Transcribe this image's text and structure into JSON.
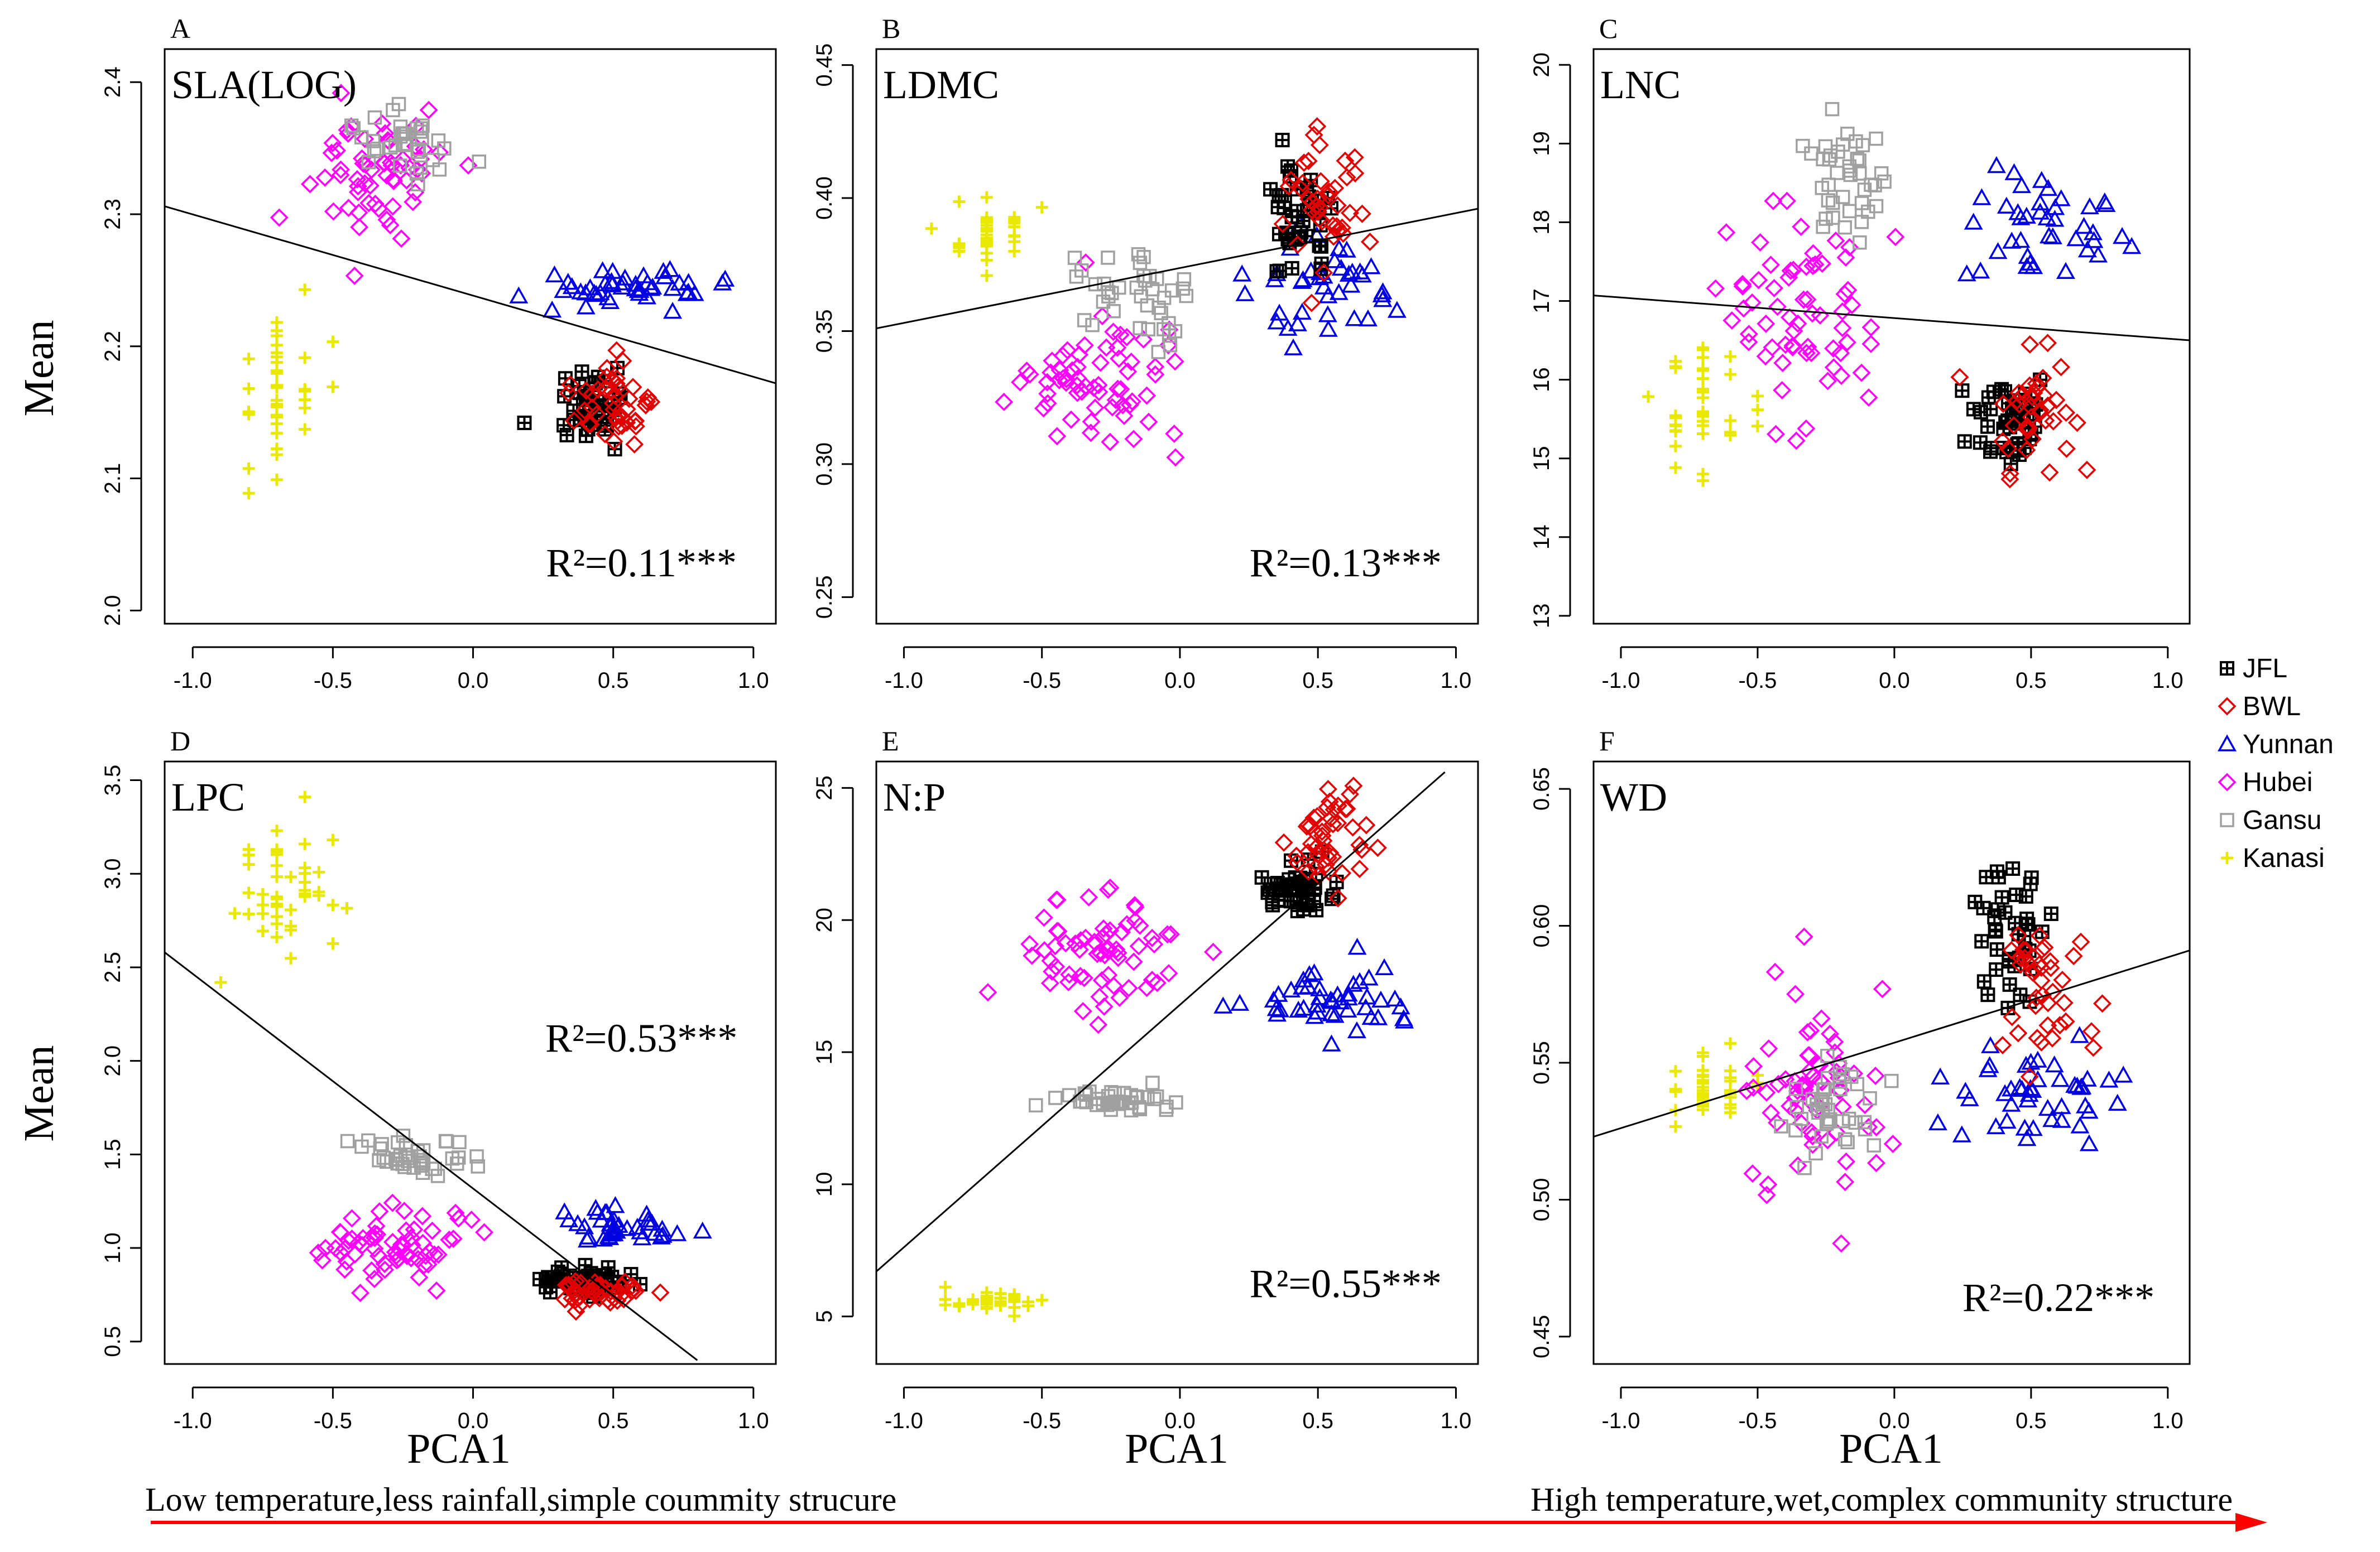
{
  "legend": {
    "items": [
      {
        "name": "JFL",
        "color": "#000000",
        "marker": "boxplus"
      },
      {
        "name": "BWL",
        "color": "#e00000",
        "marker": "diamond"
      },
      {
        "name": "Yunnan",
        "color": "#0000e0",
        "marker": "triangle"
      },
      {
        "name": "Hubei",
        "color": "#ff00ff",
        "marker": "diamond"
      },
      {
        "name": "Gansu",
        "color": "#a0a0a0",
        "marker": "square"
      },
      {
        "name": "Kanasi",
        "color": "#e8e800",
        "marker": "plus"
      }
    ]
  },
  "axes_titles": {
    "ylabel": "Mean",
    "xlabel": "PCA1"
  },
  "footer": {
    "left_text": "Low temperature,less rainfall,simple coummity strucure",
    "right_text": "High temperature,wet,complex community structure",
    "arrow_color": "#ff0000"
  },
  "chart_data": [
    {
      "panel": "A",
      "title": "SLA(LOG)",
      "type": "scatter",
      "r2": "R²=0.11***",
      "xlim": [
        -1.1,
        1.08
      ],
      "ylim": [
        1.99,
        2.425
      ],
      "xticks": [
        "-1.0",
        "-0.5",
        "0.0",
        "0.5",
        "1.0"
      ],
      "yticks": [
        "2.0",
        "2.1",
        "2.2",
        "2.3",
        "2.4"
      ],
      "fit": {
        "x": [
          -1.1,
          1.08
        ],
        "y": [
          2.306,
          2.172
        ]
      },
      "series": [
        {
          "name": "Kanasi",
          "cx": -0.68,
          "cy": 2.17,
          "sx": 0.1,
          "sy": 0.04,
          "n": 40
        },
        {
          "name": "Hubei",
          "cx": -0.33,
          "cy": 2.33,
          "sx": 0.15,
          "sy": 0.035,
          "n": 60
        },
        {
          "name": "Gansu",
          "cx": -0.22,
          "cy": 2.355,
          "sx": 0.1,
          "sy": 0.02,
          "n": 35
        },
        {
          "name": "Yunnan",
          "cx": 0.52,
          "cy": 2.245,
          "sx": 0.22,
          "sy": 0.015,
          "n": 45
        },
        {
          "name": "JFL",
          "cx": 0.42,
          "cy": 2.15,
          "sx": 0.1,
          "sy": 0.02,
          "n": 45
        },
        {
          "name": "BWL",
          "cx": 0.5,
          "cy": 2.155,
          "sx": 0.09,
          "sy": 0.02,
          "n": 45
        }
      ]
    },
    {
      "panel": "B",
      "title": "LDMC",
      "type": "scatter",
      "r2": "R²=0.13***",
      "xlim": [
        -1.1,
        1.08
      ],
      "ylim": [
        0.24,
        0.456
      ],
      "xticks": [
        "-1.0",
        "-0.5",
        "0.0",
        "0.5",
        "1.0"
      ],
      "yticks": [
        "0.25",
        "0.30",
        "0.35",
        "0.40",
        "0.45"
      ],
      "fit": {
        "x": [
          -1.1,
          1.08
        ],
        "y": [
          0.351,
          0.396
        ]
      },
      "series": [
        {
          "name": "Kanasi",
          "cx": -0.68,
          "cy": 0.388,
          "sx": 0.1,
          "sy": 0.007,
          "n": 40
        },
        {
          "name": "Hubei",
          "cx": -0.3,
          "cy": 0.332,
          "sx": 0.18,
          "sy": 0.018,
          "n": 65
        },
        {
          "name": "Gansu",
          "cx": -0.15,
          "cy": 0.362,
          "sx": 0.13,
          "sy": 0.01,
          "n": 40
        },
        {
          "name": "Yunnan",
          "cx": 0.55,
          "cy": 0.363,
          "sx": 0.2,
          "sy": 0.012,
          "n": 40
        },
        {
          "name": "JFL",
          "cx": 0.42,
          "cy": 0.395,
          "sx": 0.09,
          "sy": 0.016,
          "n": 45
        },
        {
          "name": "BWL",
          "cx": 0.52,
          "cy": 0.392,
          "sx": 0.1,
          "sy": 0.018,
          "n": 40
        }
      ]
    },
    {
      "panel": "C",
      "title": "LNC",
      "type": "scatter",
      "r2": "",
      "xlim": [
        -1.1,
        1.08
      ],
      "ylim": [
        12.9,
        20.2
      ],
      "xticks": [
        "-1.0",
        "-0.5",
        "0.0",
        "0.5",
        "1.0"
      ],
      "yticks": [
        "13",
        "14",
        "15",
        "16",
        "17",
        "18",
        "19",
        "20"
      ],
      "fit": {
        "x": [
          -1.1,
          1.08
        ],
        "y": [
          17.07,
          16.5
        ]
      },
      "series": [
        {
          "name": "Kanasi",
          "cx": -0.68,
          "cy": 15.7,
          "sx": 0.1,
          "sy": 0.6,
          "n": 40
        },
        {
          "name": "Hubei",
          "cx": -0.35,
          "cy": 16.9,
          "sx": 0.18,
          "sy": 0.8,
          "n": 65
        },
        {
          "name": "Gansu",
          "cx": -0.18,
          "cy": 18.5,
          "sx": 0.1,
          "sy": 0.5,
          "n": 40
        },
        {
          "name": "Yunnan",
          "cx": 0.55,
          "cy": 17.9,
          "sx": 0.2,
          "sy": 0.5,
          "n": 40
        },
        {
          "name": "JFL",
          "cx": 0.42,
          "cy": 15.5,
          "sx": 0.1,
          "sy": 0.45,
          "n": 45
        },
        {
          "name": "BWL",
          "cx": 0.5,
          "cy": 15.6,
          "sx": 0.1,
          "sy": 0.5,
          "n": 40
        }
      ]
    },
    {
      "panel": "D",
      "title": "LPC",
      "type": "scatter",
      "r2": "R²=0.53***",
      "xlim": [
        -1.1,
        1.08
      ],
      "ylim": [
        0.38,
        3.6
      ],
      "xticks": [
        "-1.0",
        "-0.5",
        "0.0",
        "0.5",
        "1.0"
      ],
      "yticks": [
        "0.5",
        "1.0",
        "1.5",
        "2.0",
        "2.5",
        "3.0",
        "3.5"
      ],
      "fit": {
        "x": [
          -1.1,
          0.8
        ],
        "y": [
          2.58,
          0.4
        ]
      },
      "series": [
        {
          "name": "Kanasi",
          "cx": -0.68,
          "cy": 2.9,
          "sx": 0.1,
          "sy": 0.25,
          "n": 45
        },
        {
          "name": "Hubei",
          "cx": -0.3,
          "cy": 1.02,
          "sx": 0.18,
          "sy": 0.12,
          "n": 65
        },
        {
          "name": "Gansu",
          "cx": -0.22,
          "cy": 1.48,
          "sx": 0.12,
          "sy": 0.07,
          "n": 40
        },
        {
          "name": "Yunnan",
          "cx": 0.52,
          "cy": 1.12,
          "sx": 0.18,
          "sy": 0.08,
          "n": 40
        },
        {
          "name": "JFL",
          "cx": 0.42,
          "cy": 0.82,
          "sx": 0.1,
          "sy": 0.05,
          "n": 50
        },
        {
          "name": "BWL",
          "cx": 0.45,
          "cy": 0.76,
          "sx": 0.1,
          "sy": 0.05,
          "n": 45
        }
      ]
    },
    {
      "panel": "E",
      "title": "N:P",
      "type": "scatter",
      "r2": "R²=0.55***",
      "xlim": [
        -1.1,
        1.08
      ],
      "ylim": [
        3.2,
        26.0
      ],
      "xticks": [
        "-1.0",
        "-0.5",
        "0.0",
        "0.5",
        "1.0"
      ],
      "yticks": [
        "5",
        "10",
        "15",
        "20",
        "25"
      ],
      "fit": {
        "x": [
          -1.1,
          0.96
        ],
        "y": [
          6.7,
          25.6
        ]
      },
      "series": [
        {
          "name": "Kanasi",
          "cx": -0.68,
          "cy": 5.6,
          "sx": 0.1,
          "sy": 0.25,
          "n": 45
        },
        {
          "name": "Hubei",
          "cx": -0.28,
          "cy": 18.8,
          "sx": 0.18,
          "sy": 1.6,
          "n": 65
        },
        {
          "name": "Gansu",
          "cx": -0.22,
          "cy": 13.2,
          "sx": 0.12,
          "sy": 0.3,
          "n": 40
        },
        {
          "name": "Yunnan",
          "cx": 0.52,
          "cy": 17.0,
          "sx": 0.2,
          "sy": 0.7,
          "n": 45
        },
        {
          "name": "JFL",
          "cx": 0.42,
          "cy": 21.0,
          "sx": 0.1,
          "sy": 0.6,
          "n": 45
        },
        {
          "name": "BWL",
          "cx": 0.55,
          "cy": 23.0,
          "sx": 0.1,
          "sy": 1.3,
          "n": 45
        }
      ]
    },
    {
      "panel": "F",
      "title": "WD",
      "type": "scatter",
      "r2": "R²=0.22***",
      "xlim": [
        -1.1,
        1.08
      ],
      "ylim": [
        0.44,
        0.66
      ],
      "xticks": [
        "-1.0",
        "-0.5",
        "0.0",
        "0.5",
        "1.0"
      ],
      "yticks": [
        "0.45",
        "0.50",
        "0.55",
        "0.60",
        "0.65"
      ],
      "fit": {
        "x": [
          -1.1,
          1.08
        ],
        "y": [
          0.523,
          0.591
        ]
      },
      "series": [
        {
          "name": "Kanasi",
          "cx": -0.68,
          "cy": 0.542,
          "sx": 0.1,
          "sy": 0.01,
          "n": 40
        },
        {
          "name": "Hubei",
          "cx": -0.3,
          "cy": 0.54,
          "sx": 0.18,
          "sy": 0.028,
          "n": 65
        },
        {
          "name": "Gansu",
          "cx": -0.22,
          "cy": 0.535,
          "sx": 0.12,
          "sy": 0.014,
          "n": 40
        },
        {
          "name": "Yunnan",
          "cx": 0.52,
          "cy": 0.54,
          "sx": 0.2,
          "sy": 0.012,
          "n": 45
        },
        {
          "name": "JFL",
          "cx": 0.4,
          "cy": 0.6,
          "sx": 0.08,
          "sy": 0.02,
          "n": 40
        },
        {
          "name": "BWL",
          "cx": 0.55,
          "cy": 0.58,
          "sx": 0.1,
          "sy": 0.02,
          "n": 40
        }
      ]
    }
  ]
}
